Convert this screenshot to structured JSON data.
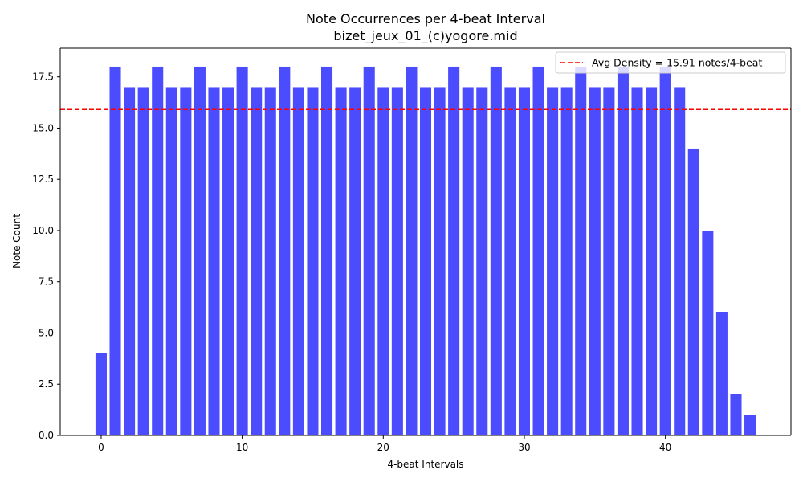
{
  "chart_data": {
    "type": "bar",
    "title": "Note Occurrences per 4-beat Interval",
    "subtitle": "bizet_jeux_01_(c)yogore.mid",
    "xlabel": "4-beat Intervals",
    "ylabel": "Note Count",
    "x": [
      0,
      1,
      2,
      3,
      4,
      5,
      6,
      7,
      8,
      9,
      10,
      11,
      12,
      13,
      14,
      15,
      16,
      17,
      18,
      19,
      20,
      21,
      22,
      23,
      24,
      25,
      26,
      27,
      28,
      29,
      30,
      31,
      32,
      33,
      34,
      35,
      36,
      37,
      38,
      39,
      40,
      41,
      42,
      43,
      44,
      45,
      46
    ],
    "values": [
      4,
      18,
      17,
      17,
      18,
      17,
      17,
      18,
      17,
      17,
      18,
      17,
      17,
      18,
      17,
      17,
      18,
      17,
      17,
      18,
      17,
      17,
      18,
      17,
      17,
      18,
      17,
      17,
      18,
      17,
      17,
      18,
      17,
      17,
      18,
      17,
      17,
      18,
      17,
      17,
      18,
      17,
      14,
      10,
      6,
      2,
      1
    ],
    "xlim": [
      -2.9,
      48.9
    ],
    "ylim": [
      0,
      18.9
    ],
    "xticks": [
      0,
      10,
      20,
      30,
      40
    ],
    "xtick_labels": [
      "0",
      "10",
      "20",
      "30",
      "40"
    ],
    "yticks": [
      0,
      2.5,
      5,
      7.5,
      10,
      12.5,
      15,
      17.5
    ],
    "ytick_labels": [
      "0.0",
      "2.5",
      "5.0",
      "7.5",
      "10.0",
      "12.5",
      "15.0",
      "17.5"
    ],
    "bar_color": "#4c4cff",
    "reference_line": {
      "value": 15.91,
      "label": "Avg Density = 15.91 notes/4-beat",
      "color": "#ff0000",
      "style": "dashed"
    },
    "legend_position": "top-right",
    "grid": false
  }
}
